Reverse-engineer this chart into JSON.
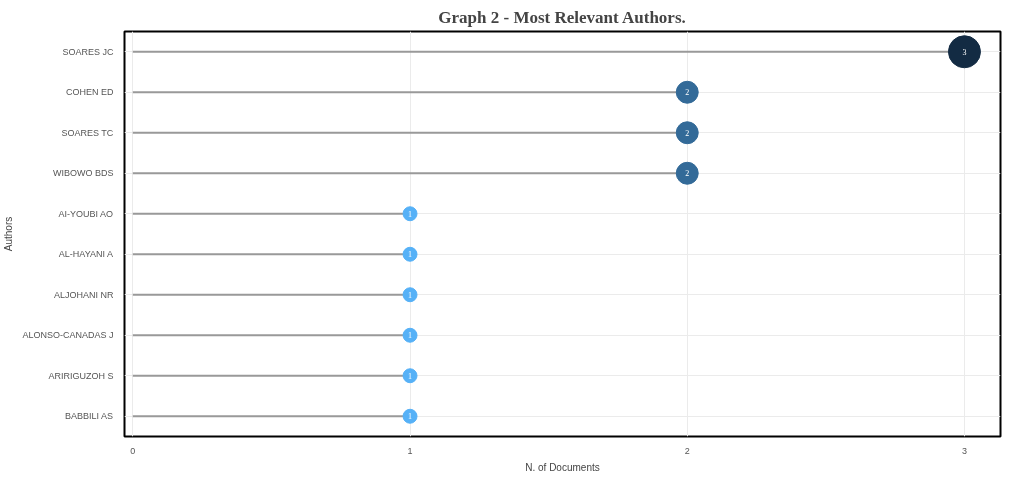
{
  "chart_data": {
    "type": "lollipop",
    "orientation": "horizontal",
    "title": "Graph 2 - Most Relevant Authors.",
    "xlabel": "N. of Documents",
    "ylabel": "Authors",
    "categories": [
      "SOARES JC",
      "COHEN ED",
      "SOARES TC",
      "WIBOWO BDS",
      "AI-YOUBI AO",
      "AL-HAYANI A",
      "ALJOHANI NR",
      "ALONSO-CANADAS J",
      "ARIRIGUZOH S",
      "BABBILI AS"
    ],
    "values": [
      3,
      2,
      2,
      2,
      1,
      1,
      1,
      1,
      1,
      1
    ],
    "sizes": [
      1,
      0.47,
      0.47,
      0.47,
      0.19,
      0.19,
      0.19,
      0.19,
      0.19,
      0.19
    ],
    "colors": [
      "#132b43",
      "#336a98",
      "#336a98",
      "#336a98",
      "#56b1f7",
      "#56b1f7",
      "#56b1f7",
      "#56b1f7",
      "#56b1f7",
      "#56b1f7"
    ],
    "xlim": [
      -0.03,
      3.13
    ],
    "xticks": [
      0,
      1,
      2,
      3
    ],
    "grid": true,
    "data_labels": true
  }
}
